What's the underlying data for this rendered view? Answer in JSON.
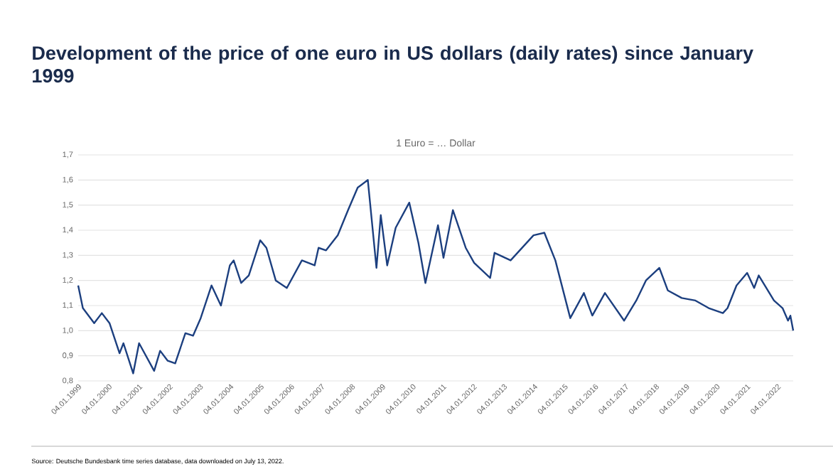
{
  "chart_data": {
    "type": "line",
    "title": "Development of the price of one euro in US dollars (daily rates) since January 1999",
    "subtitle": "1 Euro = … Dollar",
    "annotations": [
      "Source: Deutsche Bundesbank time series database, data downloaded on July 13, 2022."
    ],
    "x": [
      "1999-01-04",
      "1999-03-01",
      "1999-07-15",
      "1999-10-15",
      "2000-01-15",
      "2000-05-15",
      "2000-07-01",
      "2000-10-26",
      "2001-01-05",
      "2001-07-05",
      "2001-09-15",
      "2001-12-15",
      "2002-03-15",
      "2002-07-15",
      "2002-10-15",
      "2003-01-15",
      "2003-05-25",
      "2003-09-15",
      "2003-12-31",
      "2004-02-15",
      "2004-05-15",
      "2004-08-15",
      "2004-12-30",
      "2005-03-15",
      "2005-07-05",
      "2005-11-15",
      "2006-05-15",
      "2006-10-15",
      "2006-12-01",
      "2007-03-01",
      "2007-07-20",
      "2007-11-20",
      "2008-03-15",
      "2008-07-15",
      "2008-10-27",
      "2008-12-18",
      "2009-03-05",
      "2009-06-15",
      "2009-11-25",
      "2010-03-15",
      "2010-06-07",
      "2010-11-05",
      "2011-01-10",
      "2011-05-03",
      "2011-10-04",
      "2012-01-13",
      "2012-07-24",
      "2012-09-15",
      "2013-03-27",
      "2013-12-27",
      "2014-05-06",
      "2014-09-15",
      "2015-03-13",
      "2015-08-24",
      "2015-12-03",
      "2016-05-03",
      "2016-12-20",
      "2017-05-15",
      "2017-09-08",
      "2018-02-16",
      "2018-05-29",
      "2018-11-12",
      "2019-04-25",
      "2019-10-01",
      "2020-03-20",
      "2020-05-15",
      "2020-08-31",
      "2021-01-06",
      "2021-03-31",
      "2021-05-25",
      "2021-11-24",
      "2022-03-07",
      "2022-05-12",
      "2022-06-09",
      "2022-07-13"
    ],
    "series": [
      {
        "color": "#1c3f7f",
        "values": [
          1.18,
          1.09,
          1.03,
          1.07,
          1.03,
          0.91,
          0.95,
          0.83,
          0.95,
          0.84,
          0.92,
          0.88,
          0.87,
          0.99,
          0.98,
          1.05,
          1.18,
          1.1,
          1.26,
          1.28,
          1.19,
          1.22,
          1.36,
          1.33,
          1.2,
          1.17,
          1.28,
          1.26,
          1.33,
          1.32,
          1.38,
          1.48,
          1.57,
          1.6,
          1.25,
          1.46,
          1.26,
          1.41,
          1.51,
          1.35,
          1.19,
          1.42,
          1.29,
          1.48,
          1.33,
          1.27,
          1.21,
          1.31,
          1.28,
          1.38,
          1.39,
          1.28,
          1.05,
          1.15,
          1.06,
          1.15,
          1.04,
          1.12,
          1.2,
          1.25,
          1.16,
          1.13,
          1.12,
          1.09,
          1.07,
          1.09,
          1.18,
          1.23,
          1.17,
          1.22,
          1.12,
          1.09,
          1.04,
          1.06,
          1.0
        ]
      }
    ],
    "xlim": [
      "1999-01-04",
      "2022-07-13"
    ],
    "xticks": [
      {
        "value": "1999-01-04",
        "label": "04.01.1999"
      },
      {
        "value": "2000-01-04",
        "label": "04.01.2000"
      },
      {
        "value": "2001-01-04",
        "label": "04.01.2001"
      },
      {
        "value": "2002-01-04",
        "label": "04.01.2002"
      },
      {
        "value": "2003-01-04",
        "label": "04.01.2003"
      },
      {
        "value": "2004-01-04",
        "label": "04.01.2004"
      },
      {
        "value": "2005-01-04",
        "label": "04.01.2005"
      },
      {
        "value": "2006-01-04",
        "label": "04.01.2006"
      },
      {
        "value": "2007-01-04",
        "label": "04.01.2007"
      },
      {
        "value": "2008-01-04",
        "label": "04.01.2008"
      },
      {
        "value": "2009-01-04",
        "label": "04.01.2009"
      },
      {
        "value": "2010-01-04",
        "label": "04.01.2010"
      },
      {
        "value": "2011-01-04",
        "label": "04.01.2011"
      },
      {
        "value": "2012-01-04",
        "label": "04.01.2012"
      },
      {
        "value": "2013-01-04",
        "label": "04.01.2013"
      },
      {
        "value": "2014-01-04",
        "label": "04.01.2014"
      },
      {
        "value": "2015-01-04",
        "label": "04.01.2015"
      },
      {
        "value": "2016-01-04",
        "label": "04.01.2016"
      },
      {
        "value": "2017-01-04",
        "label": "04.01.2017"
      },
      {
        "value": "2018-01-04",
        "label": "04.01.2018"
      },
      {
        "value": "2019-01-04",
        "label": "04.01.2019"
      },
      {
        "value": "2020-01-04",
        "label": "04.01.2020"
      },
      {
        "value": "2021-01-04",
        "label": "04.01.2021"
      },
      {
        "value": "2022-01-04",
        "label": "04.01.2022"
      }
    ],
    "ylim": [
      0.8,
      1.7
    ],
    "yticks": [
      {
        "value": 0.8,
        "label": "0,8"
      },
      {
        "value": 0.9,
        "label": "0,9"
      },
      {
        "value": 1.0,
        "label": "1,0"
      },
      {
        "value": 1.1,
        "label": "1,1"
      },
      {
        "value": 1.2,
        "label": "1,2"
      },
      {
        "value": 1.3,
        "label": "1,3"
      },
      {
        "value": 1.4,
        "label": "1,4"
      },
      {
        "value": 1.5,
        "label": "1,5"
      },
      {
        "value": 1.6,
        "label": "1,6"
      },
      {
        "value": 1.7,
        "label": "1,7"
      }
    ],
    "grid": "y"
  }
}
